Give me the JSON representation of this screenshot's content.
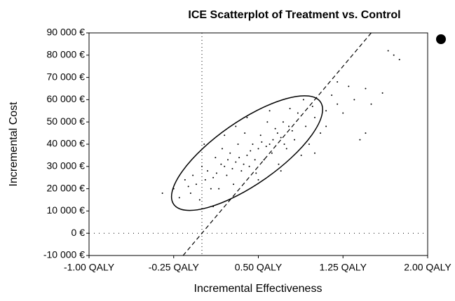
{
  "chart_data": {
    "type": "scatter",
    "title": "ICE Scatterplot of Treatment vs. Control",
    "xlabel": "Incremental Effectiveness",
    "ylabel": "Incremental Cost",
    "xlim": [
      -1,
      2
    ],
    "ylim": [
      -10000,
      90000
    ],
    "xticks": [
      {
        "value": -1,
        "label": "-1.00 QALY"
      },
      {
        "value": -0.25,
        "label": "-0.25 QALY"
      },
      {
        "value": 0.5,
        "label": "0.50 QALY"
      },
      {
        "value": 1.25,
        "label": "1.25 QALY"
      },
      {
        "value": 2,
        "label": "2.00 QALY"
      }
    ],
    "yticks": [
      {
        "value": -10000,
        "label": "-10 000 €"
      },
      {
        "value": 0,
        "label": "0 €"
      },
      {
        "value": 10000,
        "label": "10 000 €"
      },
      {
        "value": 20000,
        "label": "20 000 €"
      },
      {
        "value": 30000,
        "label": "30 000 €"
      },
      {
        "value": 40000,
        "label": "40 000 €"
      },
      {
        "value": 50000,
        "label": "50 000 €"
      },
      {
        "value": 60000,
        "label": "60 000 €"
      },
      {
        "value": 70000,
        "label": "70 000 €"
      },
      {
        "value": 80000,
        "label": "80 000 €"
      },
      {
        "value": 90000,
        "label": "90 000 €"
      }
    ],
    "xref": 0,
    "yref": 0,
    "wtp_slope": 60000,
    "ellipse": {
      "center": [
        0.4,
        36000
      ],
      "major_end": [
        1.05,
        59000
      ],
      "minor_end": [
        0.556,
        24300
      ]
    },
    "color": "#000000",
    "x": [
      0.1,
      0.2,
      0.3,
      0.4,
      0.5,
      0.6,
      0.7,
      0.8,
      0.35,
      0.45,
      0.25,
      0.55,
      0.65,
      0.75,
      0.15,
      0.05,
      -0.05,
      -0.1,
      -0.15,
      0.0,
      0.12,
      0.22,
      0.32,
      0.42,
      0.52,
      0.62,
      0.72,
      0.82,
      0.92,
      1.0,
      1.1,
      1.2,
      0.95,
      0.85,
      0.38,
      0.48,
      0.28,
      0.18,
      0.08,
      -0.2,
      -0.25,
      0.58,
      0.68,
      0.78,
      0.88,
      1.05,
      1.15,
      1.25,
      1.3,
      1.35,
      1.45,
      1.4,
      1.5,
      1.6,
      1.7,
      1.75,
      1.65,
      -0.35,
      0.02,
      -0.02,
      0.3,
      0.5,
      0.7,
      0.9,
      1.0,
      0.4,
      0.6,
      0.2,
      0.1,
      0.33,
      0.43,
      0.47,
      0.37,
      0.53,
      0.57,
      0.27,
      0.23,
      0.63,
      0.67,
      0.13,
      0.17,
      0.73,
      0.77,
      0.03,
      1.2,
      1.1,
      0.98,
      -0.08,
      -0.12,
      1.45
    ],
    "y": [
      25000,
      30000,
      32000,
      35000,
      38000,
      40000,
      43000,
      46000,
      28000,
      40000,
      36000,
      33000,
      47000,
      38000,
      20000,
      28000,
      22000,
      18000,
      24000,
      30000,
      34000,
      26000,
      40000,
      30000,
      44000,
      36000,
      50000,
      42000,
      48000,
      52000,
      55000,
      58000,
      40000,
      54000,
      45000,
      27000,
      22000,
      38000,
      20000,
      16000,
      20000,
      50000,
      31000,
      56000,
      35000,
      45000,
      62000,
      54000,
      66000,
      60000,
      65000,
      42000,
      58000,
      63000,
      80000,
      78000,
      82000,
      18000,
      40000,
      15000,
      48000,
      24000,
      28000,
      60000,
      36000,
      52000,
      55000,
      44000,
      12000,
      34000,
      37000,
      33000,
      31000,
      41000,
      39000,
      29000,
      33000,
      42000,
      45000,
      27000,
      31000,
      40000,
      48000,
      24000,
      68000,
      48000,
      57000,
      26000,
      21000,
      45000
    ]
  }
}
